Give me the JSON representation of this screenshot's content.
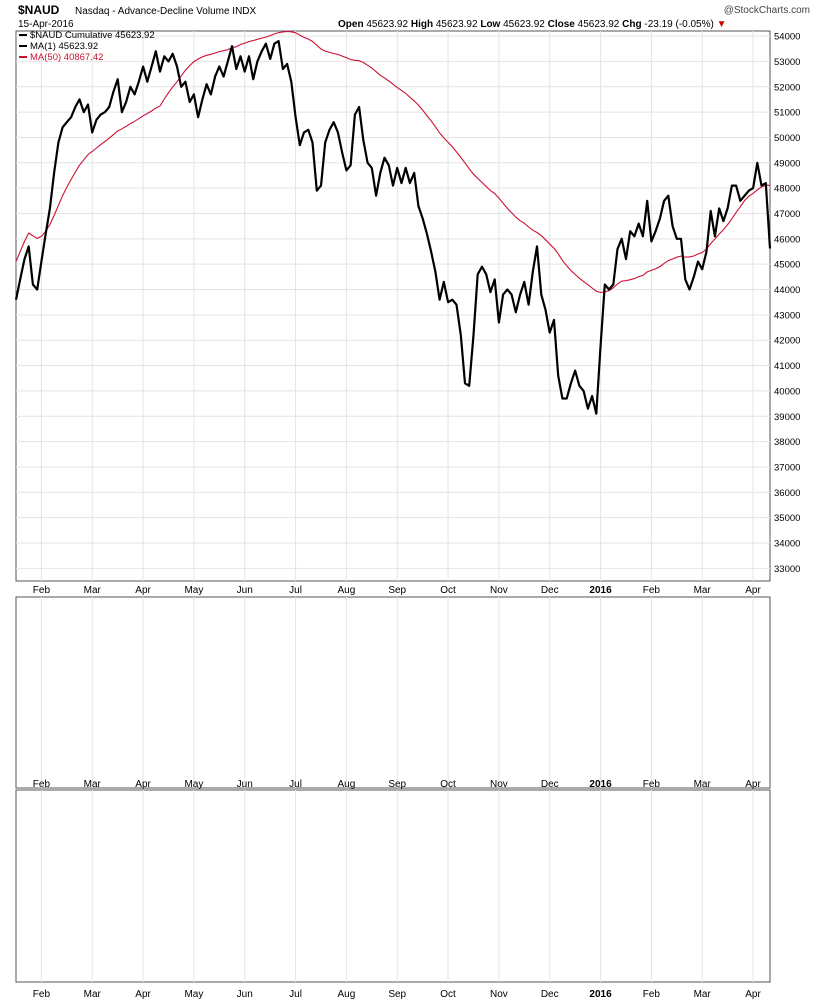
{
  "header": {
    "symbol": "$NAUD",
    "description": "Nasdaq - Advance-Decline Volume",
    "exchange": "INDX",
    "watermark": "@StockCharts.com",
    "date": "15-Apr-2016",
    "open_label": "Open",
    "open": "45623.92",
    "high_label": "High",
    "high": "45623.92",
    "low_label": "Low",
    "low": "45623.92",
    "close_label": "Close",
    "close": "45623.92",
    "chg_label": "Chg",
    "chg": "-23.19 (-0.05%)",
    "chg_arrow": "▼"
  },
  "colors": {
    "price": "#000000",
    "ma50": "#cc1133",
    "indicator": "#1a1a8c",
    "zero_line": "#aa1133",
    "grid": "#e4e4e4",
    "chg": "#cc0000"
  },
  "x_axis": {
    "labels": [
      {
        "t": 3,
        "text": "Feb",
        "bold": false
      },
      {
        "t": 9,
        "text": "Mar",
        "bold": false
      },
      {
        "t": 15,
        "text": "Apr",
        "bold": false
      },
      {
        "t": 21,
        "text": "May",
        "bold": false
      },
      {
        "t": 27,
        "text": "Jun",
        "bold": false
      },
      {
        "t": 33,
        "text": "Jul",
        "bold": false
      },
      {
        "t": 39,
        "text": "Aug",
        "bold": false
      },
      {
        "t": 45,
        "text": "Sep",
        "bold": false
      },
      {
        "t": 51,
        "text": "Oct",
        "bold": false
      },
      {
        "t": 57,
        "text": "Nov",
        "bold": false
      },
      {
        "t": 63,
        "text": "Dec",
        "bold": false
      },
      {
        "t": 69,
        "text": "2016",
        "bold": true
      },
      {
        "t": 75,
        "text": "Feb",
        "bold": false
      },
      {
        "t": 81,
        "text": "Mar",
        "bold": false
      },
      {
        "t": 87,
        "text": "Apr",
        "bold": false
      }
    ]
  },
  "chart_data": [
    {
      "type": "line",
      "panel": "main",
      "x_range": [
        0,
        89
      ],
      "ylim": [
        32500,
        54200
      ],
      "y_ticks": [
        33000,
        34000,
        35000,
        36000,
        37000,
        38000,
        39000,
        40000,
        41000,
        42000,
        43000,
        44000,
        45000,
        46000,
        47000,
        48000,
        49000,
        50000,
        51000,
        52000,
        53000,
        54000
      ],
      "legend": [
        {
          "text": "$NAUD Cumulative 45623.92",
          "color": "#000000"
        },
        {
          "text": "MA(1) 45623.92",
          "color": "#000000"
        },
        {
          "text": "MA(50) 40867.42",
          "color": "#cc1133"
        }
      ],
      "series": [
        {
          "key": "price",
          "color": "#000000",
          "width": 2.2,
          "points": [
            [
              0,
              43600
            ],
            [
              0.5,
              44400
            ],
            [
              1,
              45200
            ],
            [
              1.5,
              45700
            ],
            [
              2,
              44200
            ],
            [
              2.5,
              44000
            ],
            [
              3,
              45100
            ],
            [
              3.5,
              46200
            ],
            [
              4,
              47200
            ],
            [
              4.5,
              48600
            ],
            [
              5,
              49800
            ],
            [
              5.5,
              50400
            ],
            [
              6,
              50600
            ],
            [
              6.5,
              50800
            ],
            [
              7,
              51200
            ],
            [
              7.5,
              51500
            ],
            [
              8,
              51000
            ],
            [
              8.5,
              51300
            ],
            [
              9,
              50200
            ],
            [
              9.5,
              50700
            ],
            [
              10,
              50900
            ],
            [
              10.5,
              51000
            ],
            [
              11,
              51200
            ],
            [
              11.5,
              51800
            ],
            [
              12,
              52300
            ],
            [
              12.5,
              51000
            ],
            [
              13,
              51400
            ],
            [
              13.5,
              52000
            ],
            [
              14,
              51700
            ],
            [
              14.5,
              52200
            ],
            [
              15,
              52800
            ],
            [
              15.5,
              52200
            ],
            [
              16,
              52800
            ],
            [
              16.5,
              53400
            ],
            [
              17,
              52600
            ],
            [
              17.5,
              53200
            ],
            [
              18,
              53000
            ],
            [
              18.5,
              53300
            ],
            [
              19,
              52800
            ],
            [
              19.5,
              52000
            ],
            [
              20,
              52200
            ],
            [
              20.5,
              51400
            ],
            [
              21,
              51700
            ],
            [
              21.5,
              50800
            ],
            [
              22,
              51500
            ],
            [
              22.5,
              52100
            ],
            [
              23,
              51700
            ],
            [
              23.5,
              52400
            ],
            [
              24,
              52800
            ],
            [
              24.5,
              52400
            ],
            [
              25,
              53000
            ],
            [
              25.5,
              53600
            ],
            [
              26,
              52700
            ],
            [
              26.5,
              53200
            ],
            [
              27,
              52600
            ],
            [
              27.5,
              53200
            ],
            [
              28,
              52300
            ],
            [
              28.5,
              53000
            ],
            [
              29,
              53400
            ],
            [
              29.5,
              53700
            ],
            [
              30,
              53100
            ],
            [
              30.5,
              53700
            ],
            [
              31,
              53800
            ],
            [
              31.5,
              52700
            ],
            [
              32,
              52900
            ],
            [
              32.5,
              52200
            ],
            [
              33,
              50800
            ],
            [
              33.5,
              49700
            ],
            [
              34,
              50200
            ],
            [
              34.5,
              50300
            ],
            [
              35,
              49800
            ],
            [
              35.5,
              47900
            ],
            [
              36,
              48100
            ],
            [
              36.5,
              49800
            ],
            [
              37,
              50300
            ],
            [
              37.5,
              50600
            ],
            [
              38,
              50200
            ],
            [
              38.5,
              49400
            ],
            [
              39,
              48700
            ],
            [
              39.5,
              48900
            ],
            [
              40,
              50900
            ],
            [
              40.5,
              51200
            ],
            [
              41,
              49900
            ],
            [
              41.5,
              49000
            ],
            [
              42,
              48800
            ],
            [
              42.5,
              47700
            ],
            [
              43,
              48600
            ],
            [
              43.5,
              49200
            ],
            [
              44,
              48900
            ],
            [
              44.5,
              48100
            ],
            [
              45,
              48800
            ],
            [
              45.5,
              48200
            ],
            [
              46,
              48800
            ],
            [
              46.5,
              48200
            ],
            [
              47,
              48600
            ],
            [
              47.5,
              47300
            ],
            [
              48,
              46800
            ],
            [
              48.5,
              46200
            ],
            [
              49,
              45500
            ],
            [
              49.5,
              44700
            ],
            [
              50,
              43600
            ],
            [
              50.5,
              44300
            ],
            [
              51,
              43500
            ],
            [
              51.5,
              43600
            ],
            [
              52,
              43400
            ],
            [
              52.5,
              42200
            ],
            [
              53,
              40300
            ],
            [
              53.5,
              40200
            ],
            [
              54,
              42200
            ],
            [
              54.5,
              44600
            ],
            [
              55,
              44900
            ],
            [
              55.5,
              44600
            ],
            [
              56,
              43900
            ],
            [
              56.5,
              44400
            ],
            [
              57,
              42700
            ],
            [
              57.5,
              43800
            ],
            [
              58,
              44000
            ],
            [
              58.5,
              43800
            ],
            [
              59,
              43100
            ],
            [
              59.5,
              43800
            ],
            [
              60,
              44300
            ],
            [
              60.5,
              43400
            ],
            [
              61,
              44700
            ],
            [
              61.5,
              45700
            ],
            [
              62,
              43800
            ],
            [
              62.5,
              43200
            ],
            [
              63,
              42300
            ],
            [
              63.5,
              42800
            ],
            [
              64,
              40600
            ],
            [
              64.5,
              39700
            ],
            [
              65,
              39700
            ],
            [
              65.5,
              40300
            ],
            [
              66,
              40800
            ],
            [
              66.5,
              40200
            ],
            [
              67,
              40000
            ],
            [
              67.5,
              39300
            ],
            [
              68,
              39800
            ],
            [
              68.5,
              39100
            ],
            [
              69,
              41800
            ],
            [
              69.5,
              44200
            ],
            [
              70,
              44000
            ],
            [
              70.5,
              44200
            ],
            [
              71,
              45600
            ],
            [
              71.5,
              46000
            ],
            [
              72,
              45200
            ],
            [
              72.5,
              46300
            ],
            [
              73,
              46100
            ],
            [
              73.5,
              46600
            ],
            [
              74,
              46100
            ],
            [
              74.5,
              47500
            ],
            [
              75,
              45900
            ],
            [
              75.5,
              46300
            ],
            [
              76,
              46800
            ],
            [
              76.5,
              47500
            ],
            [
              77,
              47700
            ],
            [
              77.5,
              46500
            ],
            [
              78,
              46000
            ],
            [
              78.5,
              46000
            ],
            [
              79,
              44400
            ],
            [
              79.5,
              44000
            ],
            [
              80,
              44500
            ],
            [
              80.5,
              45100
            ],
            [
              81,
              44800
            ],
            [
              81.5,
              45500
            ],
            [
              82,
              47100
            ],
            [
              82.5,
              46100
            ],
            [
              83,
              47200
            ],
            [
              83.5,
              46700
            ],
            [
              84,
              47200
            ],
            [
              84.5,
              48100
            ],
            [
              85,
              48100
            ],
            [
              85.5,
              47500
            ],
            [
              86,
              47700
            ],
            [
              86.5,
              47900
            ],
            [
              87,
              48000
            ],
            [
              87.5,
              49000
            ],
            [
              88,
              48100
            ],
            [
              88.5,
              48200
            ],
            [
              89,
              45624
            ]
          ]
        }
      ]
    }
  ]
}
